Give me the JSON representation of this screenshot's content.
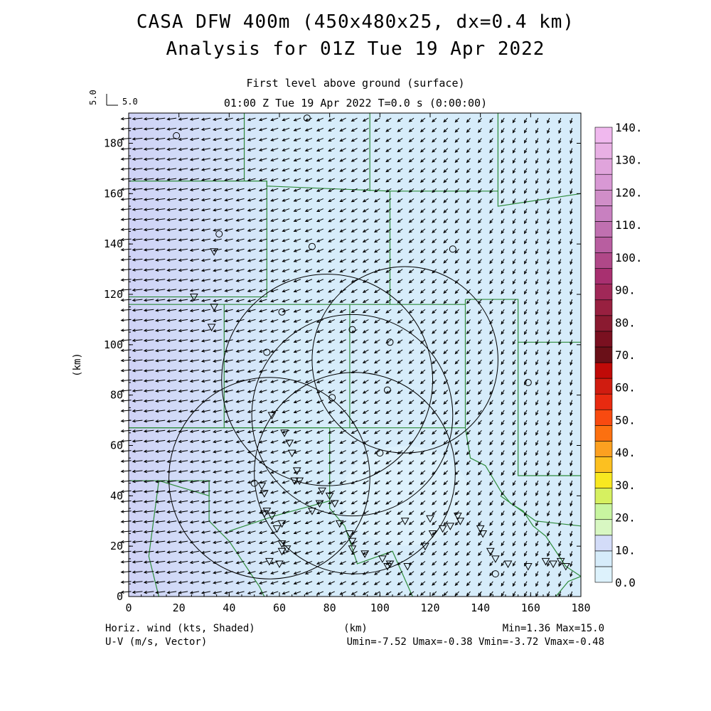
{
  "titles": {
    "line1": "CASA DFW 400m (450x480x25, dx=0.4 km)",
    "line2": "Analysis for 01Z Tue 19 Apr 2022",
    "sub1": "First level above ground (surface)",
    "sub2": "01:00 Z Tue 19 Apr 2022   T=0.0 s (0:00:00)"
  },
  "reference_vector": {
    "label": "5.0",
    "rotated_label": "5.0"
  },
  "footer": {
    "left1": "Horiz. wind (kts, Shaded)",
    "left2": "U-V (m/s, Vector)",
    "right1": "Min=1.36 Max=15.0",
    "right2": "Umin=-7.52 Umax=-0.38 Vmin=-3.72 Vmax=-0.48"
  },
  "colors": {
    "field_light": "#d6ecfa",
    "field_purple": "#cfd2f6",
    "county_lines": "#2e8b3a",
    "arrows": "#000000"
  },
  "chart_data": {
    "type": "heatmap",
    "xlabel": "(km)",
    "ylabel": "(km)",
    "xlim": [
      0,
      180
    ],
    "ylim": [
      0,
      192
    ],
    "xticks": [
      0,
      20,
      40,
      60,
      80,
      100,
      120,
      140,
      160,
      180
    ],
    "yticks": [
      0,
      20,
      40,
      60,
      80,
      100,
      120,
      140,
      160,
      180
    ],
    "colorbar": {
      "title": "Horiz. wind (kts, Shaded)",
      "ticks": [
        "0.0",
        "10.",
        "20.",
        "30.",
        "40.",
        "50.",
        "60.",
        "70.",
        "80.",
        "90.",
        "100.",
        "110.",
        "120.",
        "130.",
        "140."
      ],
      "step": 5,
      "colors": [
        "#ddf2fc",
        "#d6ecfa",
        "#d3dcf8",
        "#d8f7c2",
        "#c8f5a0",
        "#d6f060",
        "#f8e820",
        "#fcc020",
        "#fca020",
        "#fc7010",
        "#f84a10",
        "#e82a10",
        "#d01c10",
        "#c00a08",
        "#6a1018",
        "#7a1020",
        "#8a1a30",
        "#982040",
        "#a02858",
        "#a83070",
        "#b04888",
        "#b85ea0",
        "#c070b0",
        "#c880c0",
        "#d08ec8",
        "#d898d4",
        "#e0a4dc",
        "#e8b0e4",
        "#f0b8ee"
      ]
    },
    "wind_stats": {
      "min": 1.36,
      "max": 15.0,
      "umin": -7.52,
      "umax": -0.38,
      "vmin": -3.72,
      "vmax": -0.48
    },
    "radar_rings": [
      {
        "center": [
          110,
          94
        ],
        "radius_km": 37
      },
      {
        "center": [
          89,
          72
        ],
        "radius_km": 40
      },
      {
        "center": [
          79,
          86
        ],
        "radius_km": 42
      },
      {
        "center": [
          90,
          49
        ],
        "radius_km": 40
      },
      {
        "center": [
          56,
          47
        ],
        "radius_km": 40
      }
    ],
    "stations_triangle": [
      [
        34,
        115
      ],
      [
        33,
        107
      ],
      [
        34,
        137
      ],
      [
        26,
        119
      ],
      [
        57,
        72
      ],
      [
        62,
        65
      ],
      [
        64,
        61
      ],
      [
        65,
        57
      ],
      [
        67,
        50
      ],
      [
        66,
        46
      ],
      [
        68,
        46
      ],
      [
        53,
        44
      ],
      [
        54,
        41
      ],
      [
        55,
        34
      ],
      [
        54,
        33
      ],
      [
        57,
        32
      ],
      [
        59,
        27
      ],
      [
        61,
        29
      ],
      [
        61,
        21
      ],
      [
        63,
        19
      ],
      [
        61,
        18
      ],
      [
        60,
        13
      ],
      [
        56,
        14
      ],
      [
        73,
        34
      ],
      [
        76,
        37
      ],
      [
        77,
        42
      ],
      [
        80,
        40
      ],
      [
        82,
        37
      ],
      [
        84,
        29
      ],
      [
        88,
        25
      ],
      [
        89,
        22
      ],
      [
        89,
        19
      ],
      [
        94,
        17
      ],
      [
        101,
        15
      ],
      [
        103,
        12
      ],
      [
        104,
        13
      ],
      [
        111,
        12
      ],
      [
        110,
        30
      ],
      [
        120,
        31
      ],
      [
        121,
        25
      ],
      [
        118,
        20
      ],
      [
        125,
        27
      ],
      [
        128,
        28
      ],
      [
        131,
        32
      ],
      [
        132,
        30
      ],
      [
        140,
        27
      ],
      [
        141,
        25
      ],
      [
        144,
        18
      ],
      [
        146,
        15
      ],
      [
        151,
        13
      ],
      [
        159,
        12
      ],
      [
        166,
        14
      ],
      [
        169,
        13
      ],
      [
        172,
        14
      ],
      [
        174,
        12
      ]
    ],
    "stations_circle": [
      [
        19,
        183
      ],
      [
        36,
        144
      ],
      [
        73,
        139
      ],
      [
        71,
        190
      ],
      [
        61,
        113
      ],
      [
        55,
        97
      ],
      [
        89,
        106
      ],
      [
        104,
        101
      ],
      [
        103,
        82
      ],
      [
        81,
        79
      ],
      [
        100,
        57
      ],
      [
        50,
        45
      ],
      [
        129,
        138
      ],
      [
        159,
        85
      ],
      [
        146,
        9
      ]
    ]
  }
}
